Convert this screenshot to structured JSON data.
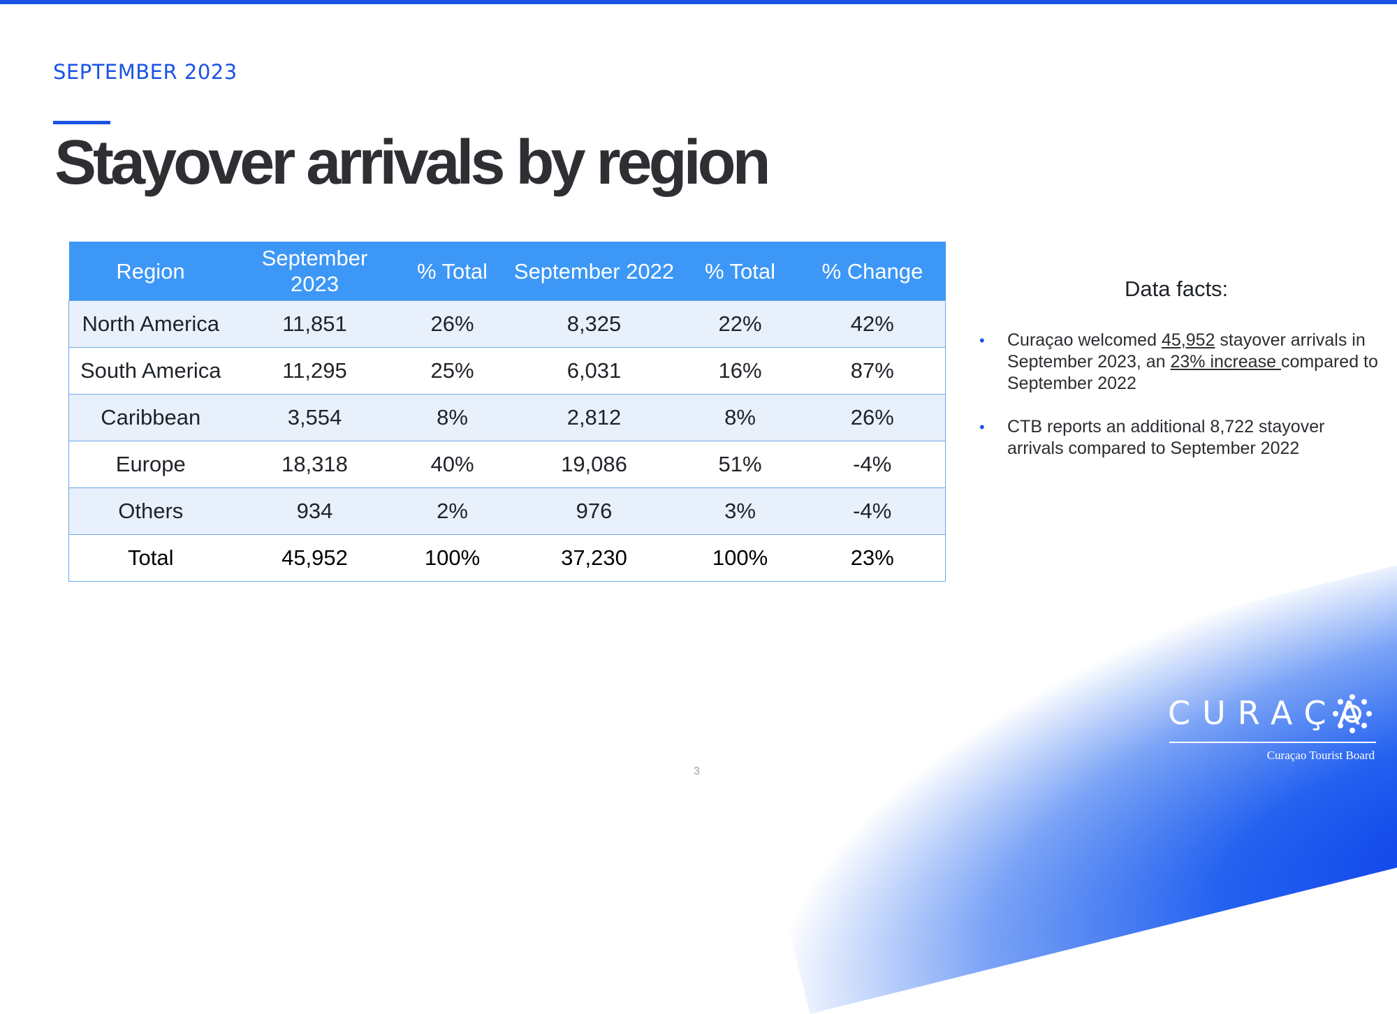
{
  "header": {
    "kicker": "SEPTEMBER 2023",
    "title": "Stayover arrivals by region"
  },
  "table": {
    "columns": [
      "Region",
      "September 2023",
      "% Total",
      "September 2022",
      "% Total",
      "% Change"
    ],
    "rows": [
      [
        "North America",
        "11,851",
        "26%",
        "8,325",
        "22%",
        "42%"
      ],
      [
        "South America",
        "11,295",
        "25%",
        "6,031",
        "16%",
        "87%"
      ],
      [
        "Caribbean",
        "3,554",
        "8%",
        "2,812",
        "8%",
        "26%"
      ],
      [
        "Europe",
        "18,318",
        "40%",
        "19,086",
        "51%",
        "-4%"
      ],
      [
        "Others",
        "934",
        "2%",
        "976",
        "3%",
        "-4%"
      ]
    ],
    "total": [
      "Total",
      "45,952",
      "100%",
      "37,230",
      "100%",
      "23%"
    ]
  },
  "facts": {
    "heading": "Data facts:",
    "fact1": {
      "prefix": "Curaçao welcomed ",
      "arrivals": "45,952",
      "middle": " stayover arrivals in September 2023, an ",
      "increase": "23% increase ",
      "suffix": "compared to September 2022"
    },
    "fact2": "CTB reports an additional 8,722 stayover arrivals compared to September 2022",
    "bullet": "•"
  },
  "logo": {
    "wordmark": "CURAÇA",
    "subtitle": "Curaçao Tourist Board"
  },
  "page_number": "3",
  "colors": {
    "accent": "#1a53e6",
    "table_header": "#3d97f6",
    "row_shade": "#e8f0fc"
  }
}
